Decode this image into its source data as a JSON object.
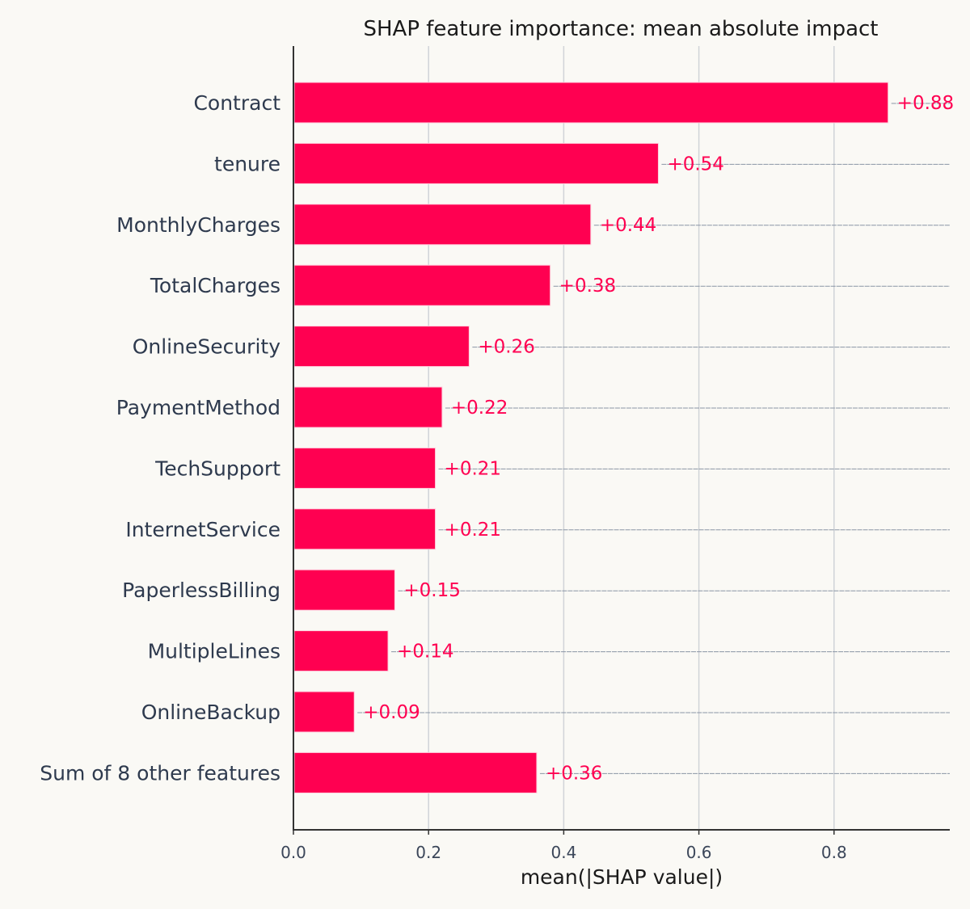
{
  "chart_data": {
    "type": "bar",
    "orientation": "horizontal",
    "title": "SHAP feature importance: mean absolute impact",
    "xlabel": "mean(|SHAP value|)",
    "ylabel": "",
    "categories": [
      "Contract",
      "tenure",
      "MonthlyCharges",
      "TotalCharges",
      "OnlineSecurity",
      "PaymentMethod",
      "TechSupport",
      "InternetService",
      "PaperlessBilling",
      "MultipleLines",
      "OnlineBackup",
      "Sum of 8 other features"
    ],
    "values": [
      0.88,
      0.54,
      0.44,
      0.38,
      0.26,
      0.22,
      0.21,
      0.21,
      0.15,
      0.14,
      0.09,
      0.36
    ],
    "value_labels": [
      "+0.88",
      "+0.54",
      "+0.44",
      "+0.38",
      "+0.26",
      "+0.22",
      "+0.21",
      "+0.21",
      "+0.15",
      "+0.14",
      "+0.09",
      "+0.36"
    ],
    "xticks": [
      0.0,
      0.2,
      0.4,
      0.6,
      0.8
    ],
    "xtick_labels": [
      "0.0",
      "0.2",
      "0.4",
      "0.6",
      "0.8"
    ],
    "xlim": [
      0,
      0.97
    ],
    "grid": "vertical",
    "legend": "none",
    "colors": {
      "bar": "#ff0051",
      "value_label": "#ff0051",
      "axis": "#333333",
      "grid": "#d0d3d8",
      "row_line": "#8a95a5",
      "background": "#faf9f5"
    }
  }
}
